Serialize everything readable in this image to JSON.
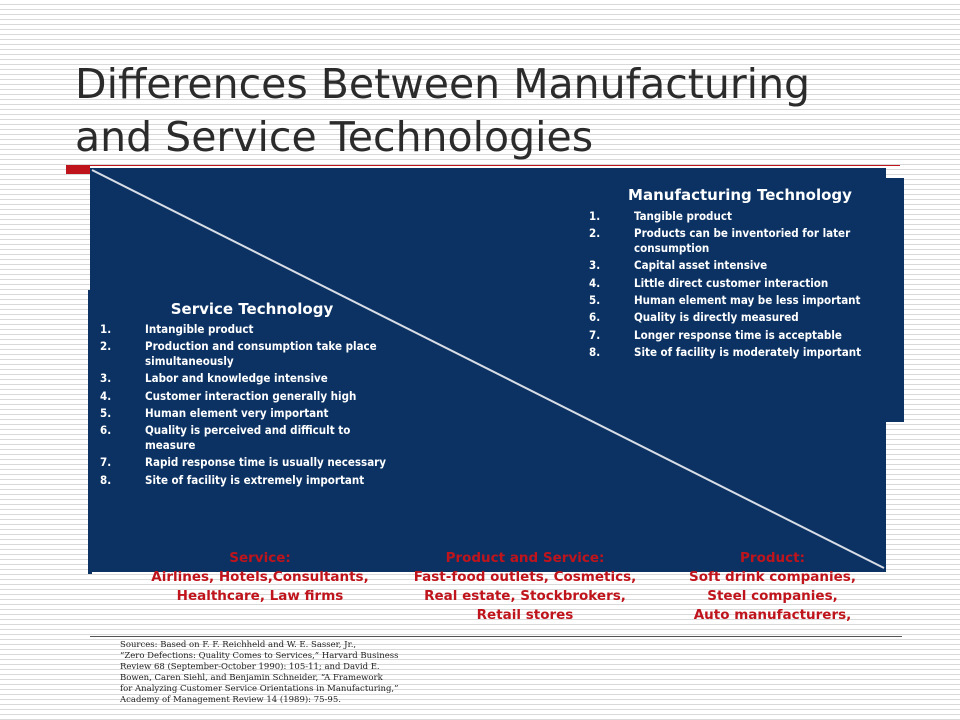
{
  "title": {
    "line1": "Differences Between Manufacturing",
    "line2": "and Service Technologies"
  },
  "manufacturing": {
    "heading": "Manufacturing Technology",
    "items": [
      {
        "num": "1.",
        "text": "Tangible product"
      },
      {
        "num": "2.",
        "text": "Products can be inventoried for later consumption"
      },
      {
        "num": "3.",
        "text": "Capital asset intensive"
      },
      {
        "num": "4.",
        "text": "Little direct customer interaction"
      },
      {
        "num": "5.",
        "text": "Human element may be less important"
      },
      {
        "num": "6.",
        "text": "Quality is directly measured"
      },
      {
        "num": "7.",
        "text": "Longer response time is acceptable"
      },
      {
        "num": "8.",
        "text": "Site of facility is moderately important"
      }
    ]
  },
  "service": {
    "heading": "Service Technology",
    "items": [
      {
        "num": "1.",
        "text": "Intangible product"
      },
      {
        "num": "2.",
        "text": "Production and consumption take place simultaneously"
      },
      {
        "num": "3.",
        "text": "Labor and knowledge intensive"
      },
      {
        "num": "4.",
        "text": "Customer interaction generally high"
      },
      {
        "num": "5.",
        "text": "Human element very important"
      },
      {
        "num": "6.",
        "text": "Quality is perceived and difficult to measure"
      },
      {
        "num": "7.",
        "text": "Rapid response time is usually necessary"
      },
      {
        "num": "8.",
        "text": "Site of facility is extremely important"
      }
    ]
  },
  "categories": {
    "service": {
      "label": "Service:",
      "examples": "Airlines, Hotels,Consultants,\nHealthcare, Law firms"
    },
    "mixed": {
      "label": "Product and Service:",
      "examples": "Fast-food outlets, Cosmetics,\nReal estate, Stockbrokers,\nRetail stores"
    },
    "product": {
      "label": "Product:",
      "examples": "Soft drink companies,\nSteel companies,\nAuto manufacturers,"
    }
  },
  "sources": "Sources: Based on F. F. Reichheld and W. E. Sasser, Jr.,\n“Zero Defections: Quality Comes to Services,” Harvard Business\nReview 68 (September-October 1990): 105-11; and David E.\nBowen, Caren Siehl, and Benjamin Schneider, “A Framework\nfor Analyzing Customer Service Orientations in Manufacturing,”\nAcademy of Management Review 14 (1989): 75-95.",
  "colors": {
    "panel": "#0b3263",
    "accent": "#c0141c",
    "title_text": "#2b2b2b"
  }
}
